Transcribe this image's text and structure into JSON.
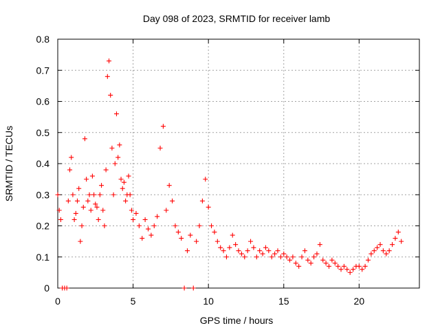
{
  "chart_data": {
    "type": "scatter",
    "title": "Day 098 of 2023, SRMTID for receiver lamb",
    "xlabel": "GPS time / hours",
    "ylabel": "SRMTID / TECUs",
    "xlim": [
      0,
      24
    ],
    "ylim": [
      0,
      0.8
    ],
    "xticks": [
      0,
      5,
      10,
      15,
      20
    ],
    "yticks": [
      0,
      0.1,
      0.2,
      0.3,
      0.4,
      0.5,
      0.6,
      0.7,
      0.8
    ],
    "grid": true,
    "marker": "+",
    "color": "#ff0000",
    "series": [
      {
        "name": "SRMTID",
        "x": [
          0.0,
          0.1,
          0.2,
          0.3,
          0.45,
          0.6,
          0.7,
          0.8,
          0.9,
          1.0,
          1.1,
          1.2,
          1.3,
          1.4,
          1.5,
          1.6,
          1.7,
          1.8,
          1.9,
          2.0,
          2.1,
          2.2,
          2.3,
          2.4,
          2.5,
          2.6,
          2.7,
          2.8,
          2.9,
          3.0,
          3.1,
          3.2,
          3.3,
          3.4,
          3.5,
          3.6,
          3.7,
          3.8,
          3.9,
          4.0,
          4.1,
          4.2,
          4.3,
          4.4,
          4.5,
          4.6,
          4.7,
          4.8,
          4.9,
          5.0,
          5.2,
          5.4,
          5.6,
          5.8,
          6.0,
          6.2,
          6.4,
          6.6,
          6.8,
          7.0,
          7.2,
          7.4,
          7.6,
          7.8,
          8.0,
          8.2,
          8.4,
          8.6,
          8.8,
          9.0,
          9.2,
          9.4,
          9.6,
          9.8,
          10.0,
          10.2,
          10.4,
          10.6,
          10.8,
          11.0,
          11.2,
          11.4,
          11.6,
          11.8,
          12.0,
          12.2,
          12.4,
          12.6,
          12.8,
          13.0,
          13.2,
          13.4,
          13.6,
          13.8,
          14.0,
          14.2,
          14.4,
          14.6,
          14.8,
          15.0,
          15.2,
          15.4,
          15.6,
          15.8,
          16.0,
          16.2,
          16.4,
          16.6,
          16.8,
          17.0,
          17.2,
          17.4,
          17.6,
          17.8,
          18.0,
          18.2,
          18.4,
          18.6,
          18.8,
          19.0,
          19.2,
          19.4,
          19.6,
          19.8,
          20.0,
          20.2,
          20.4,
          20.6,
          20.8,
          21.0,
          21.2,
          21.4,
          21.6,
          21.8,
          22.0,
          22.2,
          22.4,
          22.6,
          22.8
        ],
        "y": [
          0.3,
          0.25,
          0.22,
          0.0,
          0.0,
          0.0,
          0.28,
          0.38,
          0.42,
          0.3,
          0.22,
          0.24,
          0.28,
          0.32,
          0.15,
          0.2,
          0.26,
          0.48,
          0.35,
          0.28,
          0.3,
          0.25,
          0.36,
          0.3,
          0.27,
          0.26,
          0.22,
          0.3,
          0.33,
          0.25,
          0.2,
          0.38,
          0.68,
          0.73,
          0.62,
          0.45,
          0.3,
          0.4,
          0.56,
          0.42,
          0.46,
          0.35,
          0.32,
          0.34,
          0.28,
          0.3,
          0.36,
          0.3,
          0.25,
          0.22,
          0.24,
          0.2,
          0.16,
          0.22,
          0.19,
          0.17,
          0.2,
          0.23,
          0.45,
          0.52,
          0.25,
          0.33,
          0.28,
          0.2,
          0.18,
          0.16,
          0.0,
          0.12,
          0.17,
          0.0,
          0.15,
          0.2,
          0.28,
          0.35,
          0.26,
          0.2,
          0.18,
          0.15,
          0.13,
          0.12,
          0.1,
          0.13,
          0.17,
          0.14,
          0.12,
          0.11,
          0.1,
          0.12,
          0.15,
          0.13,
          0.1,
          0.12,
          0.11,
          0.13,
          0.12,
          0.1,
          0.11,
          0.12,
          0.1,
          0.11,
          0.1,
          0.09,
          0.1,
          0.08,
          0.07,
          0.1,
          0.12,
          0.09,
          0.08,
          0.1,
          0.11,
          0.14,
          0.09,
          0.08,
          0.07,
          0.09,
          0.08,
          0.07,
          0.06,
          0.07,
          0.06,
          0.05,
          0.06,
          0.07,
          0.07,
          0.06,
          0.07,
          0.09,
          0.11,
          0.12,
          0.13,
          0.14,
          0.12,
          0.11,
          0.12,
          0.14,
          0.16,
          0.18,
          0.15
        ]
      }
    ]
  }
}
